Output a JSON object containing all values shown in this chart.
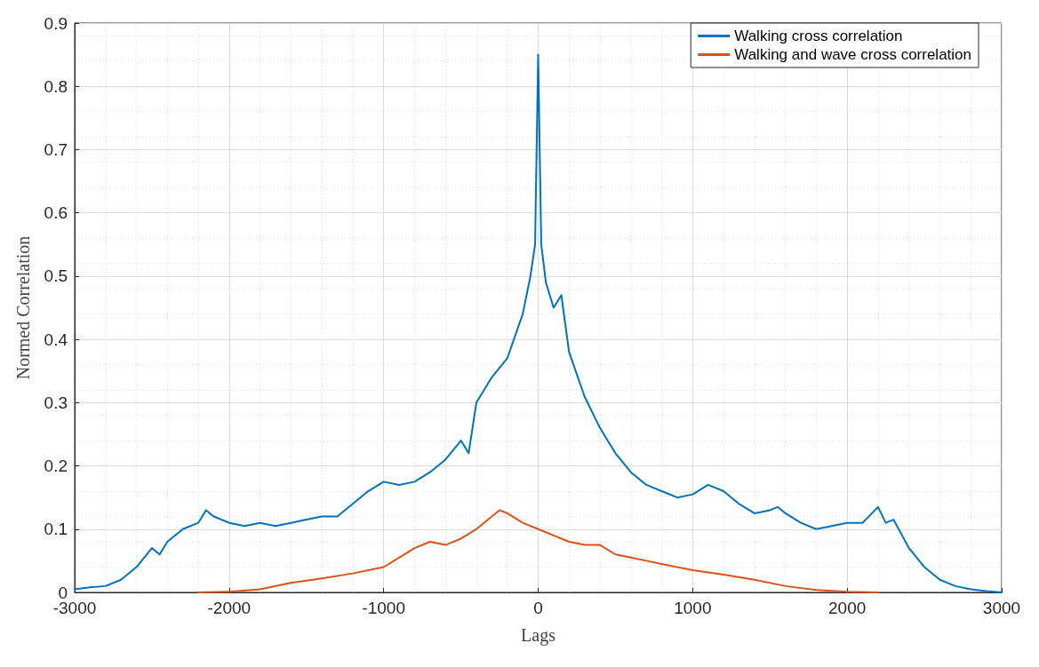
{
  "chart_data": {
    "type": "line",
    "xlabel": "Lags",
    "ylabel": "Normed Correlation",
    "xlim": [
      -3000,
      3000
    ],
    "xticks": [
      -3000,
      -2000,
      -1000,
      0,
      1000,
      2000,
      3000
    ],
    "ylim": [
      0,
      0.9
    ],
    "yticks": [
      0,
      0.1,
      0.2,
      0.3,
      0.4,
      0.5,
      0.6,
      0.7,
      0.8,
      0.9
    ],
    "grid": true,
    "legend": "top right",
    "marker": "none",
    "line_style": "solid",
    "series": [
      {
        "name": "Walking cross correlation",
        "color": "#0072bd",
        "x": [
          -3000,
          -2900,
          -2800,
          -2700,
          -2600,
          -2500,
          -2450,
          -2400,
          -2300,
          -2200,
          -2150,
          -2100,
          -2000,
          -1900,
          -1800,
          -1700,
          -1600,
          -1500,
          -1400,
          -1300,
          -1200,
          -1100,
          -1000,
          -900,
          -800,
          -700,
          -600,
          -500,
          -450,
          -400,
          -300,
          -200,
          -100,
          -50,
          -20,
          0,
          20,
          50,
          100,
          150,
          200,
          300,
          400,
          500,
          600,
          700,
          800,
          900,
          1000,
          1100,
          1200,
          1300,
          1400,
          1500,
          1550,
          1600,
          1700,
          1800,
          1900,
          2000,
          2100,
          2200,
          2250,
          2300,
          2400,
          2500,
          2600,
          2700,
          2800,
          2900,
          3000
        ],
        "values": [
          0.005,
          0.008,
          0.01,
          0.02,
          0.04,
          0.07,
          0.06,
          0.08,
          0.1,
          0.11,
          0.13,
          0.12,
          0.11,
          0.105,
          0.11,
          0.105,
          0.11,
          0.115,
          0.12,
          0.12,
          0.14,
          0.16,
          0.175,
          0.17,
          0.175,
          0.19,
          0.21,
          0.24,
          0.22,
          0.3,
          0.34,
          0.37,
          0.44,
          0.5,
          0.55,
          0.85,
          0.55,
          0.49,
          0.45,
          0.47,
          0.38,
          0.31,
          0.26,
          0.22,
          0.19,
          0.17,
          0.16,
          0.15,
          0.155,
          0.17,
          0.16,
          0.14,
          0.125,
          0.13,
          0.135,
          0.125,
          0.11,
          0.1,
          0.105,
          0.11,
          0.11,
          0.135,
          0.11,
          0.115,
          0.07,
          0.04,
          0.02,
          0.01,
          0.005,
          0.002,
          0
        ]
      },
      {
        "name": "Walking and wave cross correlation",
        "color": "#d95319",
        "x": [
          -2200,
          -2000,
          -1800,
          -1600,
          -1400,
          -1200,
          -1000,
          -900,
          -800,
          -700,
          -600,
          -500,
          -400,
          -300,
          -250,
          -200,
          -100,
          0,
          100,
          200,
          300,
          400,
          500,
          600,
          700,
          800,
          1000,
          1200,
          1400,
          1600,
          1800,
          2000,
          2200
        ],
        "values": [
          0,
          0.001,
          0.005,
          0.015,
          0.022,
          0.03,
          0.04,
          0.055,
          0.07,
          0.08,
          0.075,
          0.085,
          0.1,
          0.12,
          0.13,
          0.125,
          0.11,
          0.1,
          0.09,
          0.08,
          0.075,
          0.075,
          0.06,
          0.055,
          0.05,
          0.045,
          0.035,
          0.028,
          0.02,
          0.01,
          0.004,
          0.001,
          0
        ]
      }
    ]
  }
}
